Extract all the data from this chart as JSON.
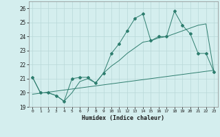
{
  "title": "",
  "xlabel": "Humidex (Indice chaleur)",
  "x": [
    0,
    1,
    2,
    3,
    4,
    5,
    6,
    7,
    8,
    9,
    10,
    11,
    12,
    13,
    14,
    15,
    16,
    17,
    18,
    19,
    20,
    21,
    22,
    23
  ],
  "main_line": [
    21.1,
    20.0,
    20.0,
    19.8,
    19.4,
    21.0,
    21.1,
    21.1,
    20.7,
    21.4,
    22.8,
    23.5,
    24.4,
    25.3,
    25.6,
    23.7,
    24.0,
    24.0,
    25.8,
    24.8,
    24.2,
    22.8,
    22.8,
    21.5
  ],
  "lower_line": [
    21.1,
    20.0,
    20.0,
    19.8,
    19.4,
    20.0,
    20.8,
    21.0,
    20.7,
    21.4,
    21.9,
    22.3,
    22.8,
    23.2,
    23.6,
    23.7,
    23.9,
    24.0,
    24.2,
    24.4,
    24.6,
    24.8,
    24.9,
    21.5
  ],
  "trend_line_x": [
    0,
    23
  ],
  "trend_line_y": [
    19.9,
    21.6
  ],
  "color": "#2d7d6e",
  "bg_color": "#d4eeee",
  "grid_color": "#b8d8d8",
  "ylim": [
    19.0,
    26.5
  ],
  "yticks": [
    19,
    20,
    21,
    22,
    23,
    24,
    25,
    26
  ],
  "xlim": [
    -0.5,
    23.5
  ],
  "xticks": [
    0,
    1,
    2,
    3,
    4,
    5,
    6,
    7,
    8,
    9,
    10,
    11,
    12,
    13,
    14,
    15,
    16,
    17,
    18,
    19,
    20,
    21,
    22,
    23
  ]
}
